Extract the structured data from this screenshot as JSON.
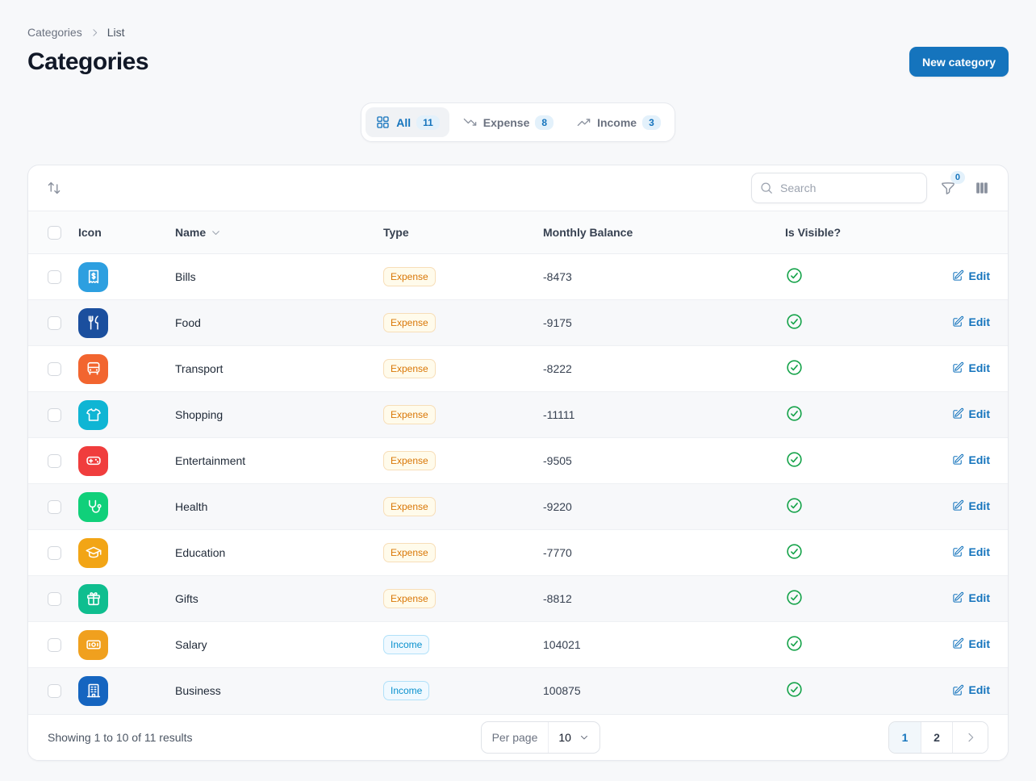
{
  "colors": {
    "primary": "#1574BD",
    "primary_soft": "#E3F1FB",
    "expense_text": "#D97706",
    "expense_bg": "#FFFBEB",
    "income_text": "#0991CE",
    "income_bg": "#F0F9FF",
    "check_green": "#16A34A"
  },
  "breadcrumb": {
    "root": "Categories",
    "current": "List"
  },
  "header": {
    "title": "Categories",
    "new_button": "New category"
  },
  "tabs": [
    {
      "label": "All",
      "badge": "11",
      "icon": "layout-grid-icon",
      "active": true
    },
    {
      "label": "Expense",
      "badge": "8",
      "icon": "trend-down-icon",
      "active": false
    },
    {
      "label": "Income",
      "badge": "3",
      "icon": "trend-up-icon",
      "active": false
    }
  ],
  "toolbar": {
    "search_placeholder": "Search",
    "filter_badge": "0"
  },
  "table": {
    "headers": {
      "icon": "Icon",
      "name": "Name",
      "type": "Type",
      "balance": "Monthly Balance",
      "visible": "Is Visible?"
    },
    "edit_label": "Edit",
    "rows": [
      {
        "name": "Bills",
        "icon": "receipt-icon",
        "icon_bg": "#2D9FE0",
        "type": "Expense",
        "balance": "-8473",
        "visible": true
      },
      {
        "name": "Food",
        "icon": "utensils-icon",
        "icon_bg": "#1B4F9E",
        "type": "Expense",
        "balance": "-9175",
        "visible": true
      },
      {
        "name": "Transport",
        "icon": "bus-icon",
        "icon_bg": "#F2652F",
        "type": "Expense",
        "balance": "-8222",
        "visible": true
      },
      {
        "name": "Shopping",
        "icon": "tshirt-icon",
        "icon_bg": "#0FB5D4",
        "type": "Expense",
        "balance": "-11111",
        "visible": true
      },
      {
        "name": "Entertainment",
        "icon": "gamepad-icon",
        "icon_bg": "#F03D3D",
        "type": "Expense",
        "balance": "-9505",
        "visible": true
      },
      {
        "name": "Health",
        "icon": "stethoscope-icon",
        "icon_bg": "#10D07A",
        "type": "Expense",
        "balance": "-9220",
        "visible": true
      },
      {
        "name": "Education",
        "icon": "graduation-cap-icon",
        "icon_bg": "#F2A516",
        "type": "Expense",
        "balance": "-7770",
        "visible": true
      },
      {
        "name": "Gifts",
        "icon": "gift-icon",
        "icon_bg": "#0FBE8F",
        "type": "Expense",
        "balance": "-8812",
        "visible": true
      },
      {
        "name": "Salary",
        "icon": "banknote-icon",
        "icon_bg": "#F0A01E",
        "type": "Income",
        "balance": "104021",
        "visible": true
      },
      {
        "name": "Business",
        "icon": "building-icon",
        "icon_bg": "#1565C0",
        "type": "Income",
        "balance": "100875",
        "visible": true
      }
    ]
  },
  "footer": {
    "summary": "Showing 1 to 10 of 11 results",
    "per_page_label": "Per page",
    "per_page_value": "10",
    "pages": [
      {
        "label": "1",
        "active": true
      },
      {
        "label": "2",
        "active": false
      }
    ]
  }
}
